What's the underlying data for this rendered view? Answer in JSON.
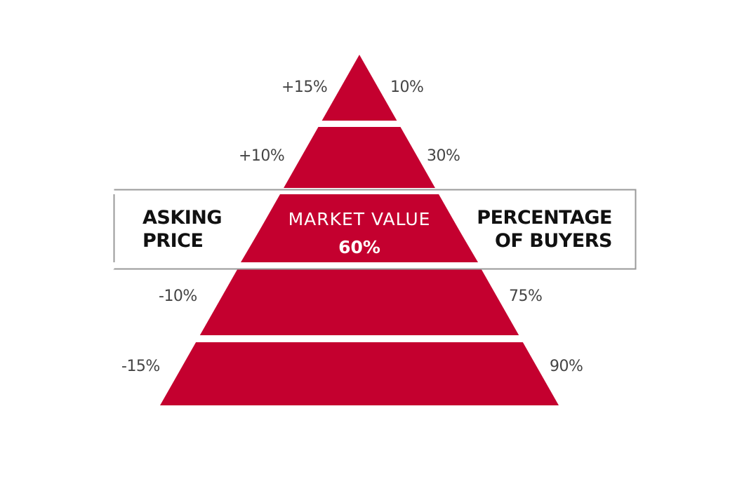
{
  "colors": {
    "pyramid": "#c4002f",
    "box_border": "#999999",
    "label_text": "#444444"
  },
  "left_header": [
    "ASKING",
    "PRICE"
  ],
  "right_header": [
    "PERCENTAGE",
    "OF BUYERS"
  ],
  "center": {
    "title": "MARKET VALUE",
    "value": "60%"
  },
  "levels": [
    {
      "asking_price": "+15%",
      "buyers": "10%"
    },
    {
      "asking_price": "+10%",
      "buyers": "30%"
    },
    {
      "asking_price": "-10%",
      "buyers": "75%"
    },
    {
      "asking_price": "-15%",
      "buyers": "90%"
    }
  ]
}
